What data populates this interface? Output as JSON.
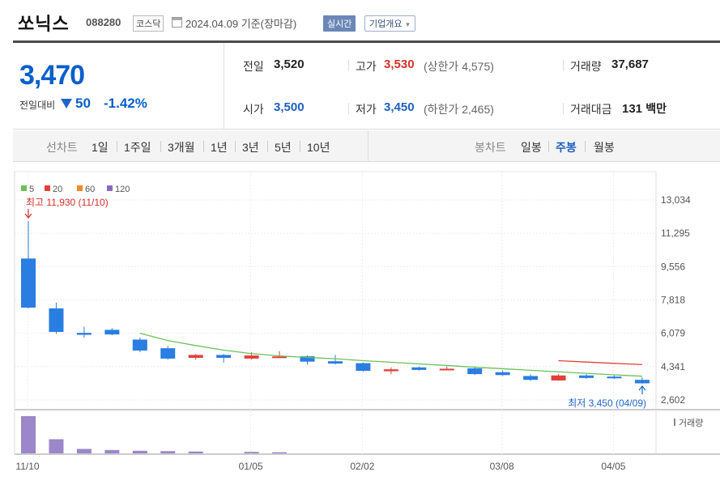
{
  "header": {
    "name": "쏘닉스",
    "code": "088280",
    "market": "코스닥",
    "date": "2024.04.09",
    "basis": "기준(장마감)",
    "realtime_label": "실시간",
    "company_label": "기업개요"
  },
  "summary": {
    "price": "3,470",
    "compare_label": "전일대비",
    "change": "50",
    "change_pct": "-1.42%",
    "prev_close_label": "전일",
    "prev_close": "3,520",
    "high_label": "고가",
    "high": "3,530",
    "upper_limit": "(상한가 4,575)",
    "volume_label": "거래량",
    "volume": "37,687",
    "open_label": "시가",
    "open": "3,500",
    "low_label": "저가",
    "low": "3,450",
    "lower_limit": "(하한가 2,465)",
    "trade_value_label": "거래대금",
    "trade_value": "131",
    "trade_value_unit": "백만"
  },
  "line_chart_tabs": {
    "label": "선차트",
    "items": [
      "1일",
      "1주일",
      "3개월",
      "1년",
      "3년",
      "5년",
      "10년"
    ]
  },
  "candle_chart_tabs": {
    "label": "봉차트",
    "items": [
      "일봉",
      "주봉",
      "월봉"
    ],
    "active": "주봉"
  },
  "colors": {
    "up": "#e0403a",
    "down": "#2a7de1",
    "ma5": "#6ac259",
    "ma20": "#e0403a",
    "ma60": "#f08a24",
    "ma120": "#8b68c2",
    "volume": "#9b87c9"
  },
  "chart_data": {
    "type": "candlestick",
    "legend": [
      "5",
      "20",
      "60",
      "120"
    ],
    "ylim": [
      2602,
      13034
    ],
    "yticks": [
      "13,034",
      "11,295",
      "9,556",
      "7,818",
      "6,079",
      "4,341",
      "2,602"
    ],
    "xticks": [
      "11/10",
      "01/05",
      "02/02",
      "03/08",
      "04/05"
    ],
    "volume_label": "거래량",
    "high_annotation": "최고 11,930 (11/10)",
    "low_annotation": "최저 3,450 (04/09)",
    "candles": [
      {
        "o": 9980,
        "h": 11930,
        "l": 7380,
        "c": 7420
      },
      {
        "o": 7380,
        "h": 7680,
        "l": 6050,
        "c": 6150
      },
      {
        "o": 6100,
        "h": 6420,
        "l": 5850,
        "c": 6000
      },
      {
        "o": 6260,
        "h": 6350,
        "l": 5980,
        "c": 6020
      },
      {
        "o": 5750,
        "h": 5850,
        "l": 5100,
        "c": 5180
      },
      {
        "o": 5300,
        "h": 5420,
        "l": 4700,
        "c": 4760
      },
      {
        "o": 4800,
        "h": 5000,
        "l": 4700,
        "c": 4950
      },
      {
        "o": 4950,
        "h": 5000,
        "l": 4550,
        "c": 4800
      },
      {
        "o": 4760,
        "h": 5100,
        "l": 4700,
        "c": 4920
      },
      {
        "o": 4830,
        "h": 5150,
        "l": 4800,
        "c": 4870
      },
      {
        "o": 4880,
        "h": 4920,
        "l": 4450,
        "c": 4600
      },
      {
        "o": 4620,
        "h": 4950,
        "l": 4450,
        "c": 4500
      },
      {
        "o": 4520,
        "h": 4560,
        "l": 4070,
        "c": 4120
      },
      {
        "o": 4100,
        "h": 4300,
        "l": 3950,
        "c": 4200
      },
      {
        "o": 4300,
        "h": 4350,
        "l": 4130,
        "c": 4170
      },
      {
        "o": 4200,
        "h": 4350,
        "l": 4150,
        "c": 4230
      },
      {
        "o": 4250,
        "h": 4350,
        "l": 3900,
        "c": 3950
      },
      {
        "o": 4050,
        "h": 4150,
        "l": 3850,
        "c": 3900
      },
      {
        "o": 3850,
        "h": 3950,
        "l": 3600,
        "c": 3650
      },
      {
        "o": 3620,
        "h": 3950,
        "l": 3600,
        "c": 3880
      },
      {
        "o": 3880,
        "h": 3950,
        "l": 3700,
        "c": 3750
      },
      {
        "o": 3820,
        "h": 3880,
        "l": 3700,
        "c": 3730
      },
      {
        "o": 3650,
        "h": 3780,
        "l": 3450,
        "c": 3470
      }
    ],
    "ma5": [
      null,
      null,
      null,
      null,
      6080,
      5700,
      5440,
      5200,
      5020,
      4900,
      4820,
      4750,
      4650,
      4570,
      4480,
      4400,
      4310,
      4230,
      4150,
      4070,
      3990,
      3910,
      3840
    ],
    "ma20": [
      null,
      null,
      null,
      null,
      null,
      null,
      null,
      null,
      null,
      null,
      null,
      null,
      null,
      null,
      null,
      null,
      null,
      null,
      null,
      4650,
      4580,
      4510,
      4450
    ],
    "volume": [
      100,
      38,
      12,
      9,
      7,
      6,
      5,
      0,
      4,
      3,
      0,
      0,
      0,
      0,
      0,
      0,
      0,
      0,
      0,
      0,
      0,
      0,
      0
    ]
  }
}
